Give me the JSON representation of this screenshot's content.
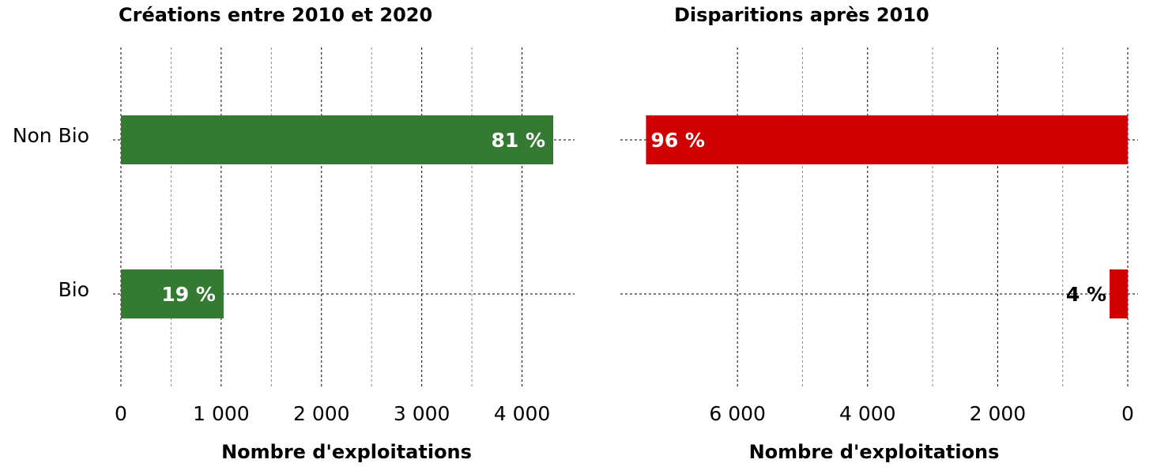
{
  "chart_data": [
    {
      "type": "bar",
      "orientation": "horizontal",
      "title": "Créations entre 2010 et 2020",
      "categories": [
        "Non Bio",
        "Bio"
      ],
      "values": [
        4311,
        1024
      ],
      "value_labels": [
        "81 %",
        "19 %"
      ],
      "color": "#357a32",
      "xlim": [
        0,
        4500
      ],
      "xticks": [
        0,
        {
          "value": 1000,
          "label": "1 000"
        },
        {
          "value": 2000,
          "label": "2 000"
        },
        {
          "value": 3000,
          "label": "3 000"
        },
        {
          "value": 4000,
          "label": "4 000"
        }
      ],
      "xlabel": "Nombre d'exploitations",
      "grid": true,
      "x_reversed": false
    },
    {
      "type": "bar",
      "orientation": "horizontal",
      "title": "Disparitions après 2010",
      "values": [
        7406,
        279
      ],
      "value_labels": [
        "96 %",
        "4 %"
      ],
      "color": "#d00000",
      "xlim": [
        0,
        7800
      ],
      "xticks": [
        0,
        {
          "value": 2000,
          "label": "2 000"
        },
        {
          "value": 4000,
          "label": "4 000"
        },
        {
          "value": 6000,
          "label": "6 000"
        }
      ],
      "xlabel": "Nombre d'exploitations",
      "grid": true,
      "x_reversed": true
    }
  ]
}
